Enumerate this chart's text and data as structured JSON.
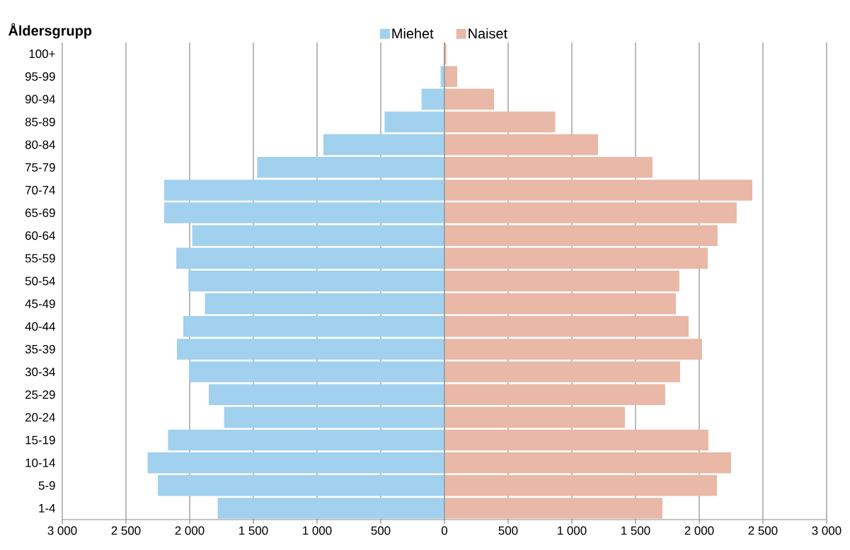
{
  "chart_data": {
    "type": "bar",
    "orientation": "horizontal",
    "ylabel": "Åldersgrupp",
    "categories": [
      "100+",
      "95-99",
      "90-94",
      "85-89",
      "80-84",
      "75-79",
      "70-74",
      "65-69",
      "60-64",
      "55-59",
      "50-54",
      "45-49",
      "40-44",
      "35-39",
      "30-34",
      "25-29",
      "20-24",
      "15-19",
      "10-14",
      "5-9",
      "1-4"
    ],
    "series": [
      {
        "name": "Miehet",
        "color": "#a1d1ee",
        "values": [
          null,
          -30,
          -180,
          -470,
          -950,
          -1470,
          -2200,
          -2200,
          -1980,
          -2105,
          -2010,
          -1880,
          -2050,
          -2100,
          -2005,
          -1850,
          -1730,
          -2170,
          -2330,
          -2250,
          -1780
        ]
      },
      {
        "name": "Naiset",
        "color": "#e9b8a7",
        "values": [
          15,
          100,
          390,
          870,
          1205,
          1633,
          2417,
          2294,
          2144,
          2067,
          1844,
          1817,
          1917,
          2022,
          1850,
          1733,
          1417,
          2072,
          2250,
          2139,
          1711
        ]
      }
    ],
    "xlim": [
      -3000,
      3000
    ],
    "xticks": [
      {
        "value": -3000,
        "label": "3 000"
      },
      {
        "value": -2500,
        "label": "2 500"
      },
      {
        "value": -2000,
        "label": "2 000"
      },
      {
        "value": -1500,
        "label": "1 500"
      },
      {
        "value": -1000,
        "label": "1 000"
      },
      {
        "value": -500,
        "label": "500"
      },
      0,
      {
        "value": 500,
        "label": "500"
      },
      {
        "value": 1000,
        "label": "1 000"
      },
      {
        "value": 1500,
        "label": "1 500"
      },
      {
        "value": 2000,
        "label": "2 000"
      },
      {
        "value": 2500,
        "label": "2 500"
      },
      {
        "value": 3000,
        "label": "3 000"
      }
    ],
    "grid": "x",
    "legend": "top",
    "stacked": true
  }
}
